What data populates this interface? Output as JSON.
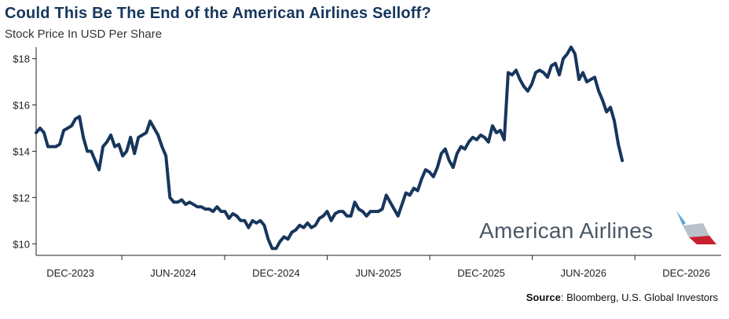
{
  "header": {
    "title": "Could This Be The End of the American Airlines Selloff?",
    "subtitle": "Stock Price In USD Per Share"
  },
  "source": {
    "label": "Source",
    "text": ": Bloomberg, U.S. Global Investors"
  },
  "logo": {
    "text": "American Airlines",
    "icon": "american-airlines-flight-symbol"
  },
  "colors": {
    "line": "#17365d",
    "title": "#17365d",
    "logo_text": "#4a5866",
    "logo_red": "#c8202f",
    "logo_blue": "#5aa9d6",
    "logo_grey": "#b9c2ca"
  },
  "chart_data": {
    "type": "line",
    "title": "Could This Be The End of the American Airlines Selloff?",
    "ylabel": "Stock Price In USD Per Share",
    "ylim": [
      9.5,
      18.5
    ],
    "yticks": [
      10,
      12,
      14,
      16,
      18
    ],
    "ytick_labels": [
      "$10",
      "$12",
      "$14",
      "$16",
      "$18"
    ],
    "xlim": [
      "2023-10-01",
      "2027-02-01"
    ],
    "xticks": [
      "2023-12-01",
      "2024-06-01",
      "2024-12-01",
      "2025-06-01",
      "2025-12-01",
      "2026-06-01",
      "2026-12-01"
    ],
    "xtick_labels": [
      "DEC-2023",
      "JUN-2024",
      "DEC-2024",
      "JUN-2025",
      "DEC-2025",
      "JUN-2026",
      "DEC-2026"
    ],
    "grid": false,
    "series": [
      {
        "values": [
          [
            "2023-10-01",
            14.8
          ],
          [
            "2023-10-08",
            15.0
          ],
          [
            "2023-10-15",
            14.8
          ],
          [
            "2023-10-22",
            14.2
          ],
          [
            "2023-10-29",
            14.2
          ],
          [
            "2023-11-05",
            14.2
          ],
          [
            "2023-11-12",
            14.3
          ],
          [
            "2023-11-19",
            14.9
          ],
          [
            "2023-11-26",
            15.0
          ],
          [
            "2023-12-03",
            15.1
          ],
          [
            "2023-12-10",
            15.4
          ],
          [
            "2023-12-17",
            15.5
          ],
          [
            "2023-12-24",
            14.6
          ],
          [
            "2023-12-31",
            14.0
          ],
          [
            "2024-01-07",
            14.0
          ],
          [
            "2024-01-14",
            13.6
          ],
          [
            "2024-01-21",
            13.2
          ],
          [
            "2024-01-28",
            14.2
          ],
          [
            "2024-02-04",
            14.4
          ],
          [
            "2024-02-11",
            14.7
          ],
          [
            "2024-02-18",
            14.2
          ],
          [
            "2024-02-25",
            14.3
          ],
          [
            "2024-03-03",
            13.8
          ],
          [
            "2024-03-10",
            14.0
          ],
          [
            "2024-03-17",
            14.6
          ],
          [
            "2024-03-24",
            13.9
          ],
          [
            "2024-03-31",
            14.6
          ],
          [
            "2024-04-07",
            14.7
          ],
          [
            "2024-04-14",
            14.8
          ],
          [
            "2024-04-21",
            15.3
          ],
          [
            "2024-04-28",
            15.0
          ],
          [
            "2024-05-05",
            14.7
          ],
          [
            "2024-05-12",
            14.2
          ],
          [
            "2024-05-19",
            13.8
          ],
          [
            "2024-05-26",
            12.0
          ],
          [
            "2024-06-02",
            11.8
          ],
          [
            "2024-06-09",
            11.8
          ],
          [
            "2024-06-16",
            11.9
          ],
          [
            "2024-06-23",
            11.7
          ],
          [
            "2024-06-30",
            11.8
          ],
          [
            "2024-07-07",
            11.7
          ],
          [
            "2024-07-14",
            11.6
          ],
          [
            "2024-07-21",
            11.6
          ],
          [
            "2024-07-28",
            11.5
          ],
          [
            "2024-08-04",
            11.5
          ],
          [
            "2024-08-11",
            11.4
          ],
          [
            "2024-08-18",
            11.6
          ],
          [
            "2024-08-25",
            11.4
          ],
          [
            "2024-09-01",
            11.4
          ],
          [
            "2024-09-08",
            11.1
          ],
          [
            "2024-09-15",
            11.3
          ],
          [
            "2024-09-22",
            11.2
          ],
          [
            "2024-09-29",
            11.0
          ],
          [
            "2024-10-06",
            11.0
          ],
          [
            "2024-10-13",
            10.7
          ],
          [
            "2024-10-20",
            11.0
          ],
          [
            "2024-10-27",
            10.9
          ],
          [
            "2024-11-03",
            11.0
          ],
          [
            "2024-11-10",
            10.8
          ],
          [
            "2024-11-17",
            10.2
          ],
          [
            "2024-11-24",
            9.8
          ],
          [
            "2024-12-01",
            9.8
          ],
          [
            "2024-12-08",
            10.1
          ],
          [
            "2024-12-15",
            10.3
          ],
          [
            "2024-12-22",
            10.2
          ],
          [
            "2024-12-29",
            10.5
          ],
          [
            "2025-01-05",
            10.6
          ],
          [
            "2025-01-12",
            10.8
          ],
          [
            "2025-01-19",
            10.7
          ],
          [
            "2025-01-26",
            10.9
          ],
          [
            "2025-02-02",
            10.7
          ],
          [
            "2025-02-09",
            10.8
          ],
          [
            "2025-02-16",
            11.1
          ],
          [
            "2025-02-23",
            11.2
          ],
          [
            "2025-03-02",
            11.4
          ],
          [
            "2025-03-09",
            11.0
          ],
          [
            "2025-03-16",
            11.3
          ],
          [
            "2025-03-23",
            11.4
          ],
          [
            "2025-03-30",
            11.4
          ],
          [
            "2025-04-06",
            11.2
          ],
          [
            "2025-04-13",
            11.2
          ],
          [
            "2025-04-20",
            11.8
          ],
          [
            "2025-04-27",
            11.5
          ],
          [
            "2025-05-04",
            11.4
          ],
          [
            "2025-05-11",
            11.2
          ],
          [
            "2025-05-18",
            11.4
          ],
          [
            "2025-05-25",
            11.4
          ],
          [
            "2025-06-01",
            11.4
          ],
          [
            "2025-06-08",
            11.5
          ],
          [
            "2025-06-15",
            12.1
          ],
          [
            "2025-06-22",
            11.8
          ],
          [
            "2025-06-29",
            11.5
          ],
          [
            "2025-07-06",
            11.2
          ],
          [
            "2025-07-13",
            11.7
          ],
          [
            "2025-07-20",
            12.2
          ],
          [
            "2025-07-27",
            12.1
          ],
          [
            "2025-08-03",
            12.4
          ],
          [
            "2025-08-10",
            12.3
          ],
          [
            "2025-08-17",
            12.8
          ],
          [
            "2025-08-24",
            13.2
          ],
          [
            "2025-08-31",
            13.1
          ],
          [
            "2025-09-07",
            12.9
          ],
          [
            "2025-09-14",
            13.3
          ],
          [
            "2025-09-21",
            13.9
          ],
          [
            "2025-09-28",
            14.1
          ],
          [
            "2025-10-05",
            13.6
          ],
          [
            "2025-10-12",
            13.3
          ],
          [
            "2025-10-19",
            13.9
          ],
          [
            "2025-10-26",
            14.2
          ],
          [
            "2025-11-02",
            14.1
          ],
          [
            "2025-11-09",
            14.4
          ],
          [
            "2025-11-16",
            14.6
          ],
          [
            "2025-11-23",
            14.5
          ],
          [
            "2025-11-30",
            14.7
          ],
          [
            "2025-12-07",
            14.6
          ],
          [
            "2025-12-14",
            14.4
          ],
          [
            "2025-12-21",
            15.1
          ],
          [
            "2025-12-28",
            14.8
          ],
          [
            "2026-01-04",
            14.9
          ],
          [
            "2026-01-11",
            14.5
          ],
          [
            "2026-01-18",
            17.4
          ],
          [
            "2026-01-25",
            17.3
          ],
          [
            "2026-02-01",
            17.5
          ],
          [
            "2026-02-08",
            17.1
          ],
          [
            "2026-02-15",
            16.8
          ],
          [
            "2026-02-22",
            16.6
          ],
          [
            "2026-03-01",
            16.9
          ],
          [
            "2026-03-08",
            17.4
          ],
          [
            "2026-03-15",
            17.5
          ],
          [
            "2026-03-22",
            17.4
          ],
          [
            "2026-03-29",
            17.2
          ],
          [
            "2026-04-05",
            17.7
          ],
          [
            "2026-04-12",
            17.8
          ],
          [
            "2026-04-19",
            17.3
          ],
          [
            "2026-04-26",
            18.0
          ],
          [
            "2026-05-03",
            18.2
          ],
          [
            "2026-05-10",
            18.5
          ],
          [
            "2026-05-17",
            18.2
          ],
          [
            "2026-05-24",
            17.1
          ],
          [
            "2026-05-31",
            17.4
          ],
          [
            "2026-06-07",
            17.0
          ],
          [
            "2026-06-14",
            17.1
          ],
          [
            "2026-06-21",
            17.2
          ],
          [
            "2026-06-28",
            16.6
          ],
          [
            "2026-07-05",
            16.2
          ],
          [
            "2026-07-12",
            15.7
          ],
          [
            "2026-07-19",
            15.9
          ],
          [
            "2026-07-26",
            15.3
          ],
          [
            "2026-08-02",
            14.3
          ],
          [
            "2026-08-09",
            13.6
          ]
        ]
      }
    ]
  }
}
